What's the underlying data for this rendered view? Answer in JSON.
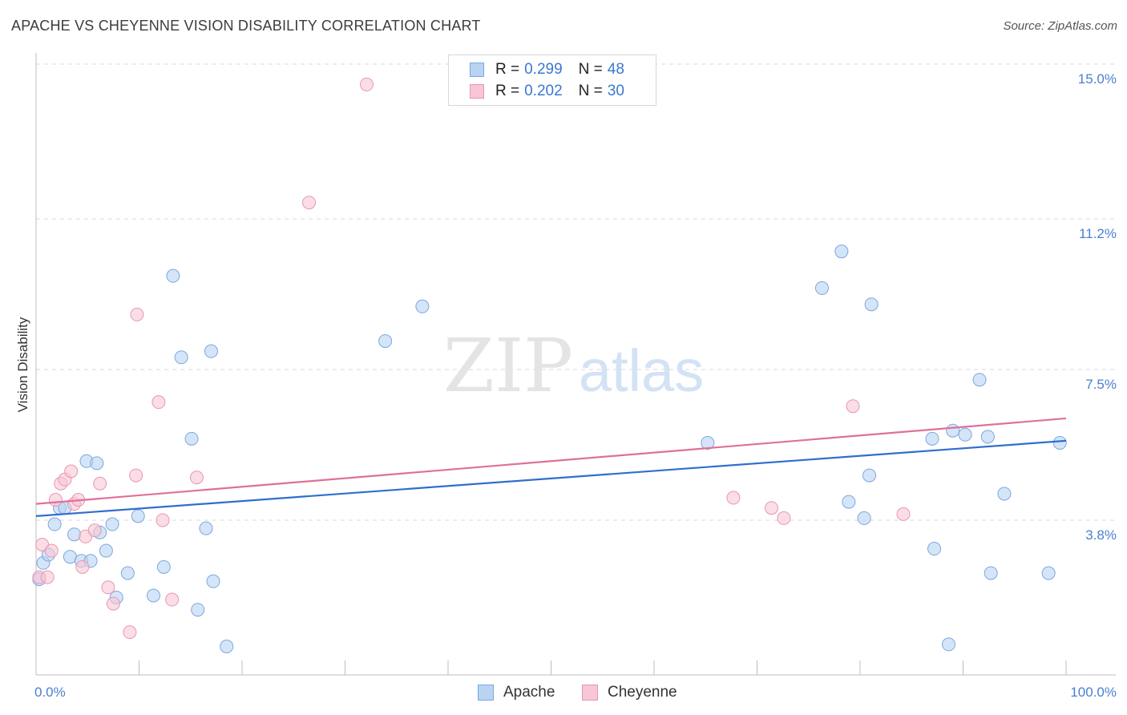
{
  "title": "APACHE VS CHEYENNE VISION DISABILITY CORRELATION CHART",
  "source": "Source: ZipAtlas.com",
  "watermark": {
    "zip": "ZIP",
    "atlas": "atlas"
  },
  "legend": {
    "rows": [
      {
        "r_label": "R =",
        "r_value": "0.299",
        "n_label": "N =",
        "n_value": "48"
      },
      {
        "r_label": "R =",
        "r_value": "0.202",
        "n_label": "N =",
        "n_value": "30"
      }
    ]
  },
  "colors": {
    "apache_fill": "#b9d3f3",
    "apache_stroke": "#7aa7e0",
    "apache_line": "#2f6fcc",
    "cheyenne_fill": "#f8c6d4",
    "cheyenne_stroke": "#e897b0",
    "cheyenne_line": "#e07098",
    "grid": "#d9d9d9",
    "tick_text": "#4a7fd0"
  },
  "chart_data": {
    "type": "scatter",
    "title": "APACHE VS CHEYENNE VISION DISABILITY CORRELATION CHART",
    "xlabel": "",
    "ylabel": "Vision Disability",
    "xlim": [
      0,
      100
    ],
    "ylim": [
      0,
      15.0
    ],
    "x_tick_labels": [
      "0.0%",
      "100.0%"
    ],
    "y_ticks": [
      3.8,
      7.5,
      11.2,
      15.0
    ],
    "y_tick_labels": [
      "3.8%",
      "7.5%",
      "11.2%",
      "15.0%"
    ],
    "grid": true,
    "legend_position": "top-center",
    "series": [
      {
        "name": "Apache",
        "points": [
          [
            0.3,
            2.35
          ],
          [
            0.7,
            2.75
          ],
          [
            1.2,
            2.95
          ],
          [
            1.8,
            3.7
          ],
          [
            2.3,
            4.1
          ],
          [
            2.8,
            4.1
          ],
          [
            3.3,
            2.9
          ],
          [
            3.7,
            3.45
          ],
          [
            4.4,
            2.8
          ],
          [
            4.9,
            5.25
          ],
          [
            5.3,
            2.8
          ],
          [
            5.9,
            5.2
          ],
          [
            6.2,
            3.5
          ],
          [
            6.8,
            3.05
          ],
          [
            7.4,
            3.7
          ],
          [
            7.8,
            1.9
          ],
          [
            8.9,
            2.5
          ],
          [
            9.9,
            3.9
          ],
          [
            11.4,
            1.95
          ],
          [
            12.4,
            2.65
          ],
          [
            13.3,
            9.8
          ],
          [
            14.1,
            7.8
          ],
          [
            15.1,
            5.8
          ],
          [
            15.7,
            1.6
          ],
          [
            16.5,
            3.6
          ],
          [
            17.0,
            7.95
          ],
          [
            17.2,
            2.3
          ],
          [
            18.5,
            0.7
          ],
          [
            33.9,
            8.2
          ],
          [
            37.5,
            9.05
          ],
          [
            65.2,
            5.7
          ],
          [
            76.3,
            9.5
          ],
          [
            78.2,
            10.4
          ],
          [
            78.9,
            4.25
          ],
          [
            80.4,
            3.85
          ],
          [
            80.9,
            4.9
          ],
          [
            81.1,
            9.1
          ],
          [
            87.0,
            5.8
          ],
          [
            87.2,
            3.1
          ],
          [
            88.6,
            0.75
          ],
          [
            89.0,
            6.0
          ],
          [
            90.2,
            5.9
          ],
          [
            91.6,
            7.25
          ],
          [
            92.4,
            5.85
          ],
          [
            92.7,
            2.5
          ],
          [
            94.0,
            4.45
          ],
          [
            98.3,
            2.5
          ],
          [
            99.4,
            5.7
          ]
        ]
      },
      {
        "name": "Cheyenne",
        "points": [
          [
            0.3,
            2.4
          ],
          [
            0.6,
            3.2
          ],
          [
            1.1,
            2.4
          ],
          [
            1.5,
            3.05
          ],
          [
            1.9,
            4.3
          ],
          [
            2.4,
            4.7
          ],
          [
            2.8,
            4.8
          ],
          [
            3.4,
            5.0
          ],
          [
            3.7,
            4.2
          ],
          [
            4.1,
            4.3
          ],
          [
            4.5,
            2.65
          ],
          [
            4.8,
            3.4
          ],
          [
            5.7,
            3.55
          ],
          [
            6.2,
            4.7
          ],
          [
            7.0,
            2.15
          ],
          [
            7.5,
            1.75
          ],
          [
            9.1,
            1.05
          ],
          [
            9.7,
            4.9
          ],
          [
            9.8,
            8.85
          ],
          [
            11.9,
            6.7
          ],
          [
            12.3,
            3.8
          ],
          [
            13.2,
            1.85
          ],
          [
            15.6,
            4.85
          ],
          [
            26.5,
            11.6
          ],
          [
            32.1,
            14.5
          ],
          [
            67.7,
            4.35
          ],
          [
            71.4,
            4.1
          ],
          [
            72.6,
            3.85
          ],
          [
            79.3,
            6.6
          ],
          [
            84.2,
            3.95
          ]
        ]
      }
    ],
    "trend_lines": [
      {
        "name": "Apache",
        "x": [
          0,
          100
        ],
        "y": [
          3.9,
          5.75
        ]
      },
      {
        "name": "Cheyenne",
        "x": [
          0,
          100
        ],
        "y": [
          4.2,
          6.3
        ]
      }
    ]
  },
  "bottom_legend": [
    {
      "label": "Apache"
    },
    {
      "label": "Cheyenne"
    }
  ]
}
